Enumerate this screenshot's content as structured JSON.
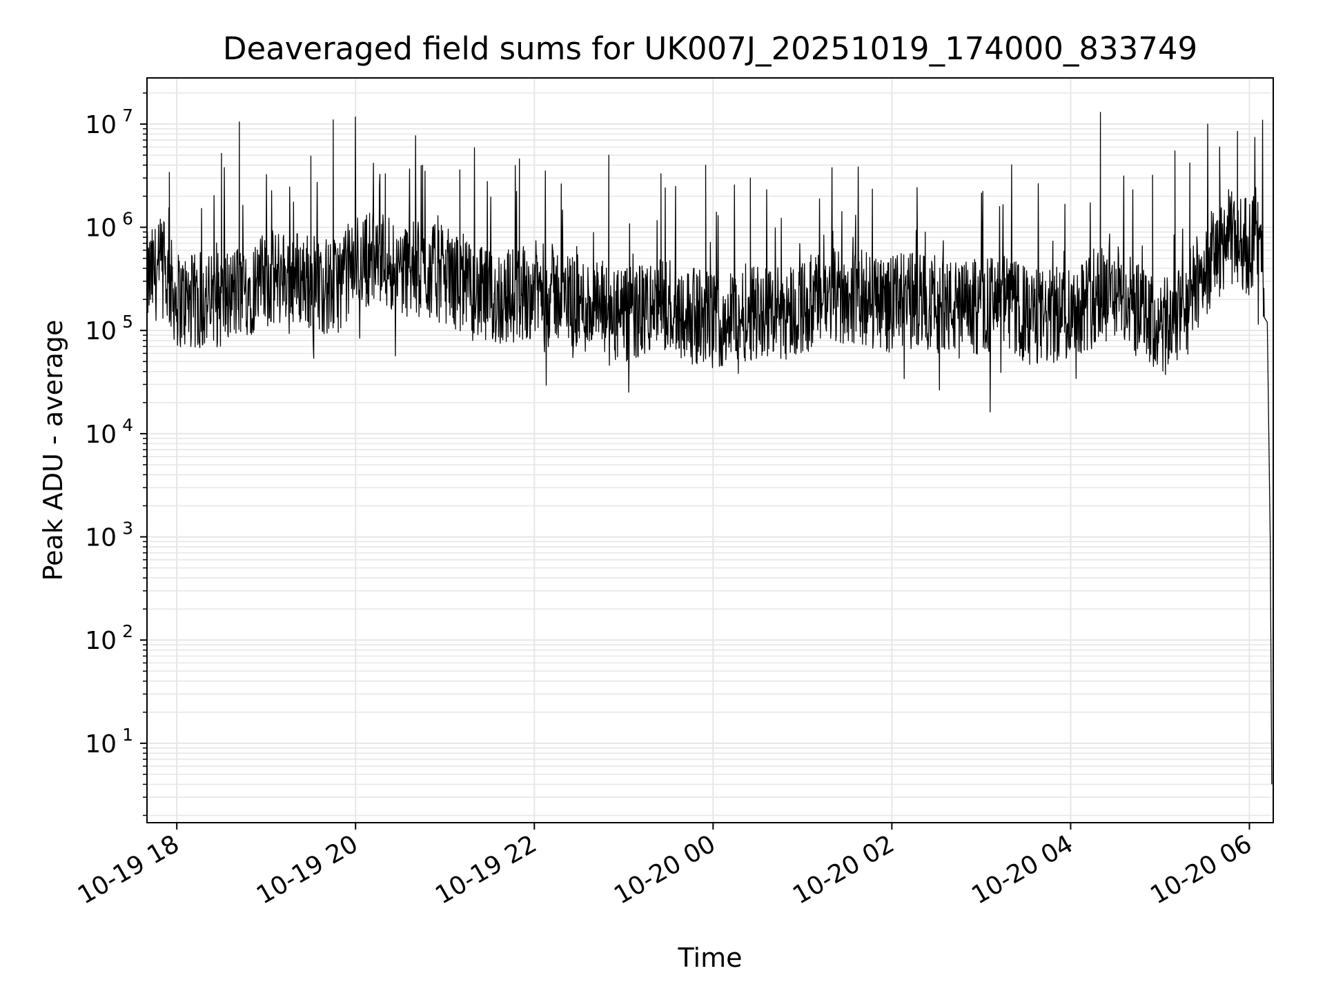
{
  "chart_data": {
    "type": "line",
    "title": "Deaveraged field sums for UK007J_20251019_174000_833749",
    "xlabel": "Time",
    "ylabel": "Peak ADU - average",
    "yscale": "log",
    "xlim": [
      "2025-10-19 17:40",
      "2025-10-20 06:16"
    ],
    "ylim": [
      1.7,
      28000000
    ],
    "grid": "on (major and minor)",
    "line_color": "#000000",
    "x_ticks": [
      {
        "t": "2025-10-19 18:00",
        "label": "10-19 18"
      },
      {
        "t": "2025-10-19 20:00",
        "label": "10-19 20"
      },
      {
        "t": "2025-10-19 22:00",
        "label": "10-19 22"
      },
      {
        "t": "2025-10-20 00:00",
        "label": "10-20 00"
      },
      {
        "t": "2025-10-20 02:00",
        "label": "10-20 02"
      },
      {
        "t": "2025-10-20 04:00",
        "label": "10-20 04"
      },
      {
        "t": "2025-10-20 06:00",
        "label": "10-20 06"
      }
    ],
    "y_ticks": [
      {
        "value": 10,
        "base": "10",
        "exp": "1"
      },
      {
        "value": 100,
        "base": "10",
        "exp": "2"
      },
      {
        "value": 1000,
        "base": "10",
        "exp": "3"
      },
      {
        "value": 10000,
        "base": "10",
        "exp": "4"
      },
      {
        "value": 100000,
        "base": "10",
        "exp": "5"
      },
      {
        "value": 1000000,
        "base": "10",
        "exp": "6"
      },
      {
        "value": 10000000,
        "base": "10",
        "exp": "7"
      }
    ],
    "series": [
      {
        "points": [
          [
            "2025-10-19 17:40",
            300000
          ],
          [
            "2025-10-19 17:50",
            420000
          ],
          [
            "2025-10-19 18:00",
            200000
          ],
          [
            "2025-10-19 18:15",
            180000
          ],
          [
            "2025-10-19 18:30",
            200000
          ],
          [
            "2025-10-19 18:45",
            250000
          ],
          [
            "2025-10-19 19:00",
            300000
          ],
          [
            "2025-10-19 19:15",
            350000
          ],
          [
            "2025-10-19 19:30",
            300000
          ],
          [
            "2025-10-19 19:45",
            250000
          ],
          [
            "2025-10-19 20:00",
            450000
          ],
          [
            "2025-10-19 20:15",
            550000
          ],
          [
            "2025-10-19 20:30",
            400000
          ],
          [
            "2025-10-19 20:45",
            380000
          ],
          [
            "2025-10-19 21:00",
            350000
          ],
          [
            "2025-10-19 21:15",
            250000
          ],
          [
            "2025-10-19 21:30",
            200000
          ],
          [
            "2025-10-19 21:45",
            220000
          ],
          [
            "2025-10-19 22:00",
            250000
          ],
          [
            "2025-10-19 22:15",
            230000
          ],
          [
            "2025-10-19 22:30",
            180000
          ],
          [
            "2025-10-19 22:45",
            160000
          ],
          [
            "2025-10-19 23:00",
            130000
          ],
          [
            "2025-10-19 23:15",
            160000
          ],
          [
            "2025-10-19 23:30",
            180000
          ],
          [
            "2025-10-19 23:45",
            140000
          ],
          [
            "2025-10-20 00:00",
            120000
          ],
          [
            "2025-10-20 00:15",
            140000
          ],
          [
            "2025-10-20 00:30",
            160000
          ],
          [
            "2025-10-20 00:45",
            150000
          ],
          [
            "2025-10-20 01:00",
            170000
          ],
          [
            "2025-10-20 01:15",
            200000
          ],
          [
            "2025-10-20 01:30",
            220000
          ],
          [
            "2025-10-20 01:45",
            200000
          ],
          [
            "2025-10-20 02:00",
            180000
          ],
          [
            "2025-10-20 02:15",
            200000
          ],
          [
            "2025-10-20 02:30",
            180000
          ],
          [
            "2025-10-20 02:45",
            160000
          ],
          [
            "2025-10-20 03:00",
            170000
          ],
          [
            "2025-10-20 03:15",
            190000
          ],
          [
            "2025-10-20 03:30",
            140000
          ],
          [
            "2025-10-20 03:45",
            130000
          ],
          [
            "2025-10-20 04:00",
            160000
          ],
          [
            "2025-10-20 04:15",
            200000
          ],
          [
            "2025-10-20 04:30",
            250000
          ],
          [
            "2025-10-20 04:45",
            150000
          ],
          [
            "2025-10-20 05:00",
            100000
          ],
          [
            "2025-10-20 05:15",
            150000
          ],
          [
            "2025-10-20 05:30",
            400000
          ],
          [
            "2025-10-20 05:45",
            800000
          ],
          [
            "2025-10-20 06:00",
            650000
          ],
          [
            "2025-10-20 06:05",
            900000
          ],
          [
            "2025-10-20 06:10",
            250000
          ],
          [
            "2025-10-20 06:14",
            900
          ],
          [
            "2025-10-20 06:15",
            4
          ]
        ],
        "spikes": [
          [
            "2025-10-19 17:55",
            3400000
          ],
          [
            "2025-10-19 18:30",
            5200000
          ],
          [
            "2025-10-19 18:42",
            10500000
          ],
          [
            "2025-10-19 19:30",
            4900000
          ],
          [
            "2025-10-19 19:45",
            11000000
          ],
          [
            "2025-10-19 20:20",
            3300000
          ],
          [
            "2025-10-19 20:45",
            4000000
          ],
          [
            "2025-10-19 21:10",
            3600000
          ],
          [
            "2025-10-19 21:50",
            4600000
          ],
          [
            "2025-10-19 22:50",
            5000000
          ],
          [
            "2025-10-19 23:25",
            3300000
          ],
          [
            "2025-10-19 23:55",
            4000000
          ],
          [
            "2025-10-20 00:25",
            3000000
          ],
          [
            "2025-10-20 04:20",
            13000000
          ],
          [
            "2025-10-20 04:55",
            3200000
          ],
          [
            "2025-10-20 05:10",
            5500000
          ],
          [
            "2025-10-20 05:20",
            4200000
          ],
          [
            "2025-10-20 05:32",
            10000000
          ],
          [
            "2025-10-20 05:40",
            6000000
          ],
          [
            "2025-10-20 05:52",
            8500000
          ]
        ]
      }
    ]
  }
}
